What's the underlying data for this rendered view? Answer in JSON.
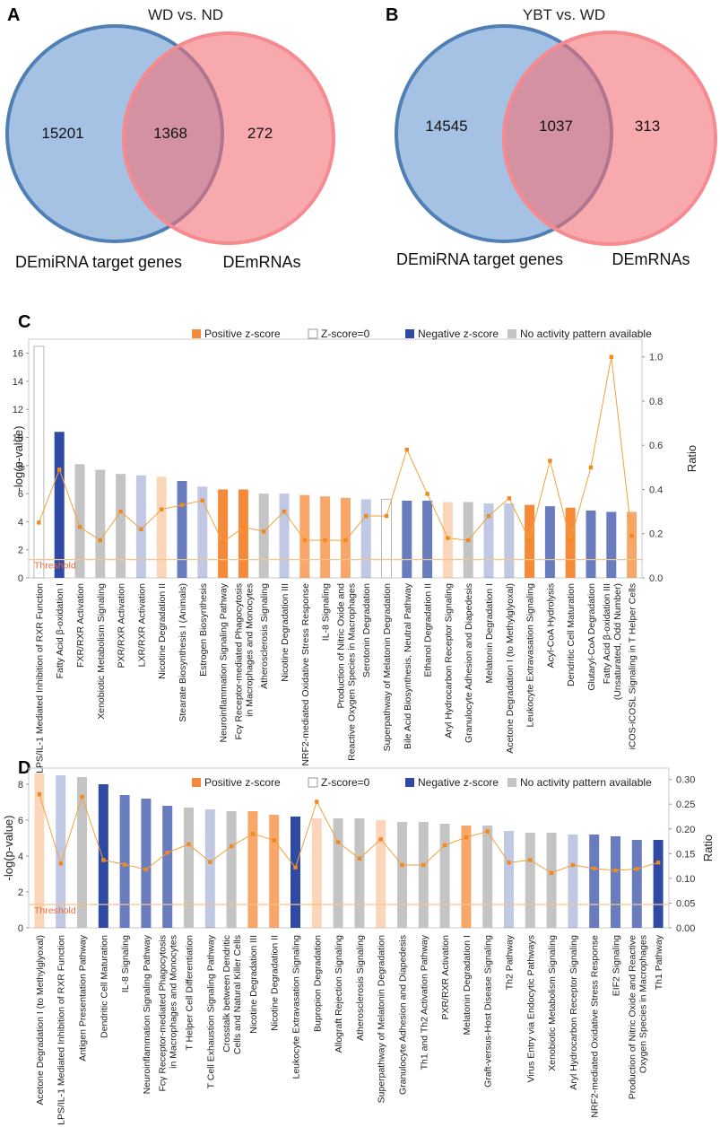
{
  "colors": {
    "venn_left": "#5b8fce",
    "venn_left_stroke": "#4f7fb5",
    "venn_right": "#f36f77",
    "venn_right_stroke": "#f58a90",
    "positive": "#f58a3a",
    "zero_stroke": "#b8b8b8",
    "negative": "#2f4aa3",
    "na": "#c4c4c4",
    "ratio_line": "#f2a23a",
    "threshold": "#f7c48a",
    "threshold_text": "#f26b3a"
  },
  "panels": {
    "a": {
      "letter": "A",
      "title": "WD vs. ND",
      "left_only": "15201",
      "overlap": "1368",
      "right_only": "272",
      "left_label": "DEmiRNA target genes",
      "right_label": "DEmRNAs"
    },
    "b": {
      "letter": "B",
      "title": "YBT vs. WD",
      "left_only": "14545",
      "overlap": "1037",
      "right_only": "313",
      "left_label": "DEmiRNA target genes",
      "right_label": "DEmRNAs"
    }
  },
  "legend": {
    "positive": "Positive z-score",
    "zero": "Z-score=0",
    "negative": "Negative z-score",
    "na": "No activity pattern available"
  },
  "chart_data": [
    {
      "type": "bar",
      "panel": "C",
      "ylabel": "-log(p-value)",
      "y2label": "Ratio",
      "threshold_label": "Threshold",
      "threshold": 1.3,
      "ylim": [
        0,
        17
      ],
      "yticks": [
        0,
        2,
        4,
        6,
        8,
        10,
        12,
        14,
        16
      ],
      "y2lim": [
        0,
        1.08
      ],
      "y2ticks": [
        "0.0",
        "0.2",
        "0.4",
        "0.6",
        "0.8",
        "1.0"
      ],
      "bars": [
        {
          "label": [
            "LPS/IL-1 Mediated Inhibition of RXR Function"
          ],
          "value": 16.5,
          "cat": "zero",
          "ratio": 0.25
        },
        {
          "label": [
            "Fatty Acid β-oxidation I"
          ],
          "value": 10.4,
          "cat": "neg",
          "ratio": 0.49
        },
        {
          "label": [
            "FXR/RXR Activation"
          ],
          "value": 8.1,
          "cat": "na",
          "ratio": 0.23
        },
        {
          "label": [
            "Xenobiotic Metabolism Signaling"
          ],
          "value": 7.7,
          "cat": "na",
          "ratio": 0.17
        },
        {
          "label": [
            "PXR/RXR Activation"
          ],
          "value": 7.4,
          "cat": "na",
          "ratio": 0.3
        },
        {
          "label": [
            "LXR/RXR Activation"
          ],
          "value": 7.3,
          "cat": "neglight",
          "ratio": 0.22
        },
        {
          "label": [
            "Nicotine Degradation II"
          ],
          "value": 7.2,
          "cat": "poslight",
          "ratio": 0.31
        },
        {
          "label": [
            "Stearate Biosynthesis I (Animals)"
          ],
          "value": 6.9,
          "cat": "negmid",
          "ratio": 0.33
        },
        {
          "label": [
            "Estrogen Biosynthesis"
          ],
          "value": 6.5,
          "cat": "neglight",
          "ratio": 0.35
        },
        {
          "label": [
            "Neuroinflammation Signaling Pathway"
          ],
          "value": 6.3,
          "cat": "pos",
          "ratio": 0.16
        },
        {
          "label": [
            "Fcγ Receptor-mediated Phagocytosis",
            "in Macrophages and Monocytes"
          ],
          "value": 6.3,
          "cat": "pos",
          "ratio": 0.23
        },
        {
          "label": [
            "Atherosclerosis Signaling"
          ],
          "value": 6.0,
          "cat": "na",
          "ratio": 0.21
        },
        {
          "label": [
            "Nicotine Degradation III"
          ],
          "value": 6.0,
          "cat": "neglight",
          "ratio": 0.3
        },
        {
          "label": [
            "NRF2-mediated Oxidative Stress Response"
          ],
          "value": 5.9,
          "cat": "posmid",
          "ratio": 0.17
        },
        {
          "label": [
            "IL-8 Signaling"
          ],
          "value": 5.8,
          "cat": "posmid",
          "ratio": 0.17
        },
        {
          "label": [
            "Production of Nitric Oxide and",
            "Reactive Oxygen Species in Macrophages"
          ],
          "value": 5.7,
          "cat": "posmid",
          "ratio": 0.17
        },
        {
          "label": [
            "Serotonin Degradation"
          ],
          "value": 5.6,
          "cat": "neglight",
          "ratio": 0.28
        },
        {
          "label": [
            "Superpathway of Melatonin Degradation"
          ],
          "value": 5.6,
          "cat": "zero",
          "ratio": 0.28
        },
        {
          "label": [
            "Bile Acid Biosynthesis, Neutral Pathway"
          ],
          "value": 5.5,
          "cat": "negmid",
          "ratio": 0.58
        },
        {
          "label": [
            "Ethanol Degradation II"
          ],
          "value": 5.5,
          "cat": "negmid",
          "ratio": 0.38
        },
        {
          "label": [
            "Aryl Hydrocarbon Receptor Signaling"
          ],
          "value": 5.4,
          "cat": "poslight",
          "ratio": 0.18
        },
        {
          "label": [
            "Granulocyte Adhesion and Diapedesis"
          ],
          "value": 5.4,
          "cat": "na",
          "ratio": 0.17
        },
        {
          "label": [
            "Melatonin Degradation I"
          ],
          "value": 5.3,
          "cat": "neglight",
          "ratio": 0.28
        },
        {
          "label": [
            "Acetone Degradation I (to Methylglyoxal)"
          ],
          "value": 5.3,
          "cat": "neglight",
          "ratio": 0.36
        },
        {
          "label": [
            "Leukocyte Extravasation Signaling"
          ],
          "value": 5.2,
          "cat": "pos",
          "ratio": 0.17
        },
        {
          "label": [
            "Acyl-CoA Hydrolysis"
          ],
          "value": 5.1,
          "cat": "negmid",
          "ratio": 0.53
        },
        {
          "label": [
            "Dendritic Cell Maturation"
          ],
          "value": 5.0,
          "cat": "pos",
          "ratio": 0.17
        },
        {
          "label": [
            "Glutaryl-CoA Degradation"
          ],
          "value": 4.8,
          "cat": "negmid",
          "ratio": 0.5
        },
        {
          "label": [
            "Fatty Acid β-oxidation III",
            "(Unsaturated, Odd Number)"
          ],
          "value": 4.7,
          "cat": "negmid",
          "ratio": 1.0
        },
        {
          "label": [
            "iCOS-iCOSL Signaling in T Helper Cells"
          ],
          "value": 4.7,
          "cat": "posmid",
          "ratio": 0.19
        }
      ]
    },
    {
      "type": "bar",
      "panel": "D",
      "ylabel": "-log(p-value)",
      "y2label": "Ratio",
      "threshold_label": "Threshold",
      "threshold": 1.3,
      "ylim": [
        0,
        8.9
      ],
      "yticks": [
        0,
        2,
        4,
        6,
        8
      ],
      "y2lim": [
        0,
        0.323
      ],
      "y2ticks": [
        "0.00",
        "0.05",
        "0.10",
        "0.15",
        "0.20",
        "0.25",
        "0.30"
      ],
      "bars": [
        {
          "label": [
            "Acetone Degradation I (to Methylglyoxal)"
          ],
          "value": 8.6,
          "cat": "poslight",
          "ratio": 0.27
        },
        {
          "label": [
            "LPS/IL-1 Mediated Inhibition of RXR Function"
          ],
          "value": 8.5,
          "cat": "neglight",
          "ratio": 0.13
        },
        {
          "label": [
            "Antigen Presentation Pathway"
          ],
          "value": 8.4,
          "cat": "na",
          "ratio": 0.265
        },
        {
          "label": [
            "Dendritic Cell Maturation"
          ],
          "value": 8.0,
          "cat": "neg",
          "ratio": 0.137
        },
        {
          "label": [
            "IL-8 Signaling"
          ],
          "value": 7.4,
          "cat": "negmid",
          "ratio": 0.128
        },
        {
          "label": [
            "Neuroinflammation Signaling Pathway"
          ],
          "value": 7.2,
          "cat": "negmid",
          "ratio": 0.118
        },
        {
          "label": [
            "Fcγ Receptor-mediated Phagocytosis",
            "in Macrophages and Monocytes"
          ],
          "value": 6.8,
          "cat": "negmid",
          "ratio": 0.152
        },
        {
          "label": [
            "T Helper Cell Differentiation"
          ],
          "value": 6.7,
          "cat": "na",
          "ratio": 0.169
        },
        {
          "label": [
            "T Cell Exhaustion Signaling Pathway"
          ],
          "value": 6.6,
          "cat": "neglight",
          "ratio": 0.133
        },
        {
          "label": [
            "Crosstalk between Dendritic",
            "Cells and Natural Killer Cells"
          ],
          "value": 6.5,
          "cat": "na",
          "ratio": 0.165
        },
        {
          "label": [
            "Nicotine Degradation III"
          ],
          "value": 6.5,
          "cat": "posmid",
          "ratio": 0.19
        },
        {
          "label": [
            "Nicotine Degradation II"
          ],
          "value": 6.3,
          "cat": "posmid",
          "ratio": 0.177
        },
        {
          "label": [
            "Leukocyte Extravasation Signaling"
          ],
          "value": 6.2,
          "cat": "neg",
          "ratio": 0.122
        },
        {
          "label": [
            "Bupropion Degradation"
          ],
          "value": 6.1,
          "cat": "poslight",
          "ratio": 0.255
        },
        {
          "label": [
            "Allograft Rejection Signaling"
          ],
          "value": 6.1,
          "cat": "na",
          "ratio": 0.173
        },
        {
          "label": [
            "Atherosclerosis Signaling"
          ],
          "value": 6.1,
          "cat": "na",
          "ratio": 0.14
        },
        {
          "label": [
            "Superpathway of Melatonin Degradation"
          ],
          "value": 6.0,
          "cat": "poslight",
          "ratio": 0.179
        },
        {
          "label": [
            "Granulocyte Adhesion and Diapedesis"
          ],
          "value": 5.9,
          "cat": "na",
          "ratio": 0.127
        },
        {
          "label": [
            "Th1 and Th2 Activation Pathway"
          ],
          "value": 5.9,
          "cat": "na",
          "ratio": 0.127
        },
        {
          "label": [
            "PXR/RXR Activation"
          ],
          "value": 5.8,
          "cat": "na",
          "ratio": 0.167
        },
        {
          "label": [
            "Melatonin Degradation I"
          ],
          "value": 5.7,
          "cat": "posmid",
          "ratio": 0.183
        },
        {
          "label": [
            "Graft-versus-Host Disease Signaling"
          ],
          "value": 5.7,
          "cat": "na",
          "ratio": 0.195
        },
        {
          "label": [
            "Th2 Pathway"
          ],
          "value": 5.4,
          "cat": "neglight",
          "ratio": 0.132
        },
        {
          "label": [
            "Virus Entry via Endocytic Pathways"
          ],
          "value": 5.3,
          "cat": "na",
          "ratio": 0.137
        },
        {
          "label": [
            "Xenobiotic Metabolism Signaling"
          ],
          "value": 5.3,
          "cat": "na",
          "ratio": 0.111
        },
        {
          "label": [
            "Aryl Hydrocarbon Receptor Signaling"
          ],
          "value": 5.2,
          "cat": "neglight",
          "ratio": 0.127
        },
        {
          "label": [
            "NRF2-mediated Oxidative Stress Response"
          ],
          "value": 5.2,
          "cat": "negmid",
          "ratio": 0.12
        },
        {
          "label": [
            "EIF2 Signaling"
          ],
          "value": 5.1,
          "cat": "negmid",
          "ratio": 0.116
        },
        {
          "label": [
            "Production of Nitric Oxide and Reactive",
            "Oxygen Species in Macrophages"
          ],
          "value": 4.9,
          "cat": "negmid",
          "ratio": 0.119
        },
        {
          "label": [
            "Th1 Pathway"
          ],
          "value": 4.9,
          "cat": "neg",
          "ratio": 0.132
        }
      ]
    }
  ]
}
